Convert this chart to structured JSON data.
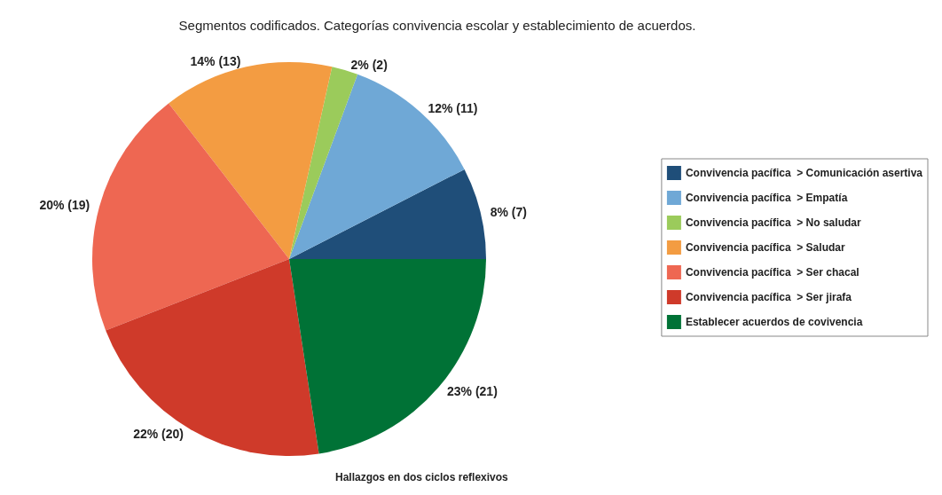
{
  "chart_data": {
    "type": "pie",
    "title": "Segmentos codificados. Categorías convivencia escolar y establecimiento de acuerdos.",
    "categories": [
      "Convivencia pacífica  > Comunicación asertiva",
      "Convivencia pacífica  > Empatía",
      "Convivencia pacífica  > No saludar",
      "Convivencia pacífica  > Saludar",
      "Convivencia pacífica  > Ser chacal",
      "Convivencia pacífica  > Ser jirafa",
      "Establecer acuerdos de covivencia"
    ],
    "values": [
      7,
      11,
      2,
      13,
      19,
      20,
      21
    ],
    "value_labels": [
      "8% (7)",
      "12% (11)",
      "2% (2)",
      "14% (13)",
      "20% (19)",
      "22% (20)",
      "23% (21)"
    ],
    "colors": [
      "#1f4e79",
      "#6fa8d6",
      "#9bcb5b",
      "#f39c42",
      "#ee6752",
      "#cf3a2a",
      "#007236"
    ],
    "legend": "right",
    "annotations": [
      "Hallazgos en dos ciclos reflexivos"
    ]
  }
}
